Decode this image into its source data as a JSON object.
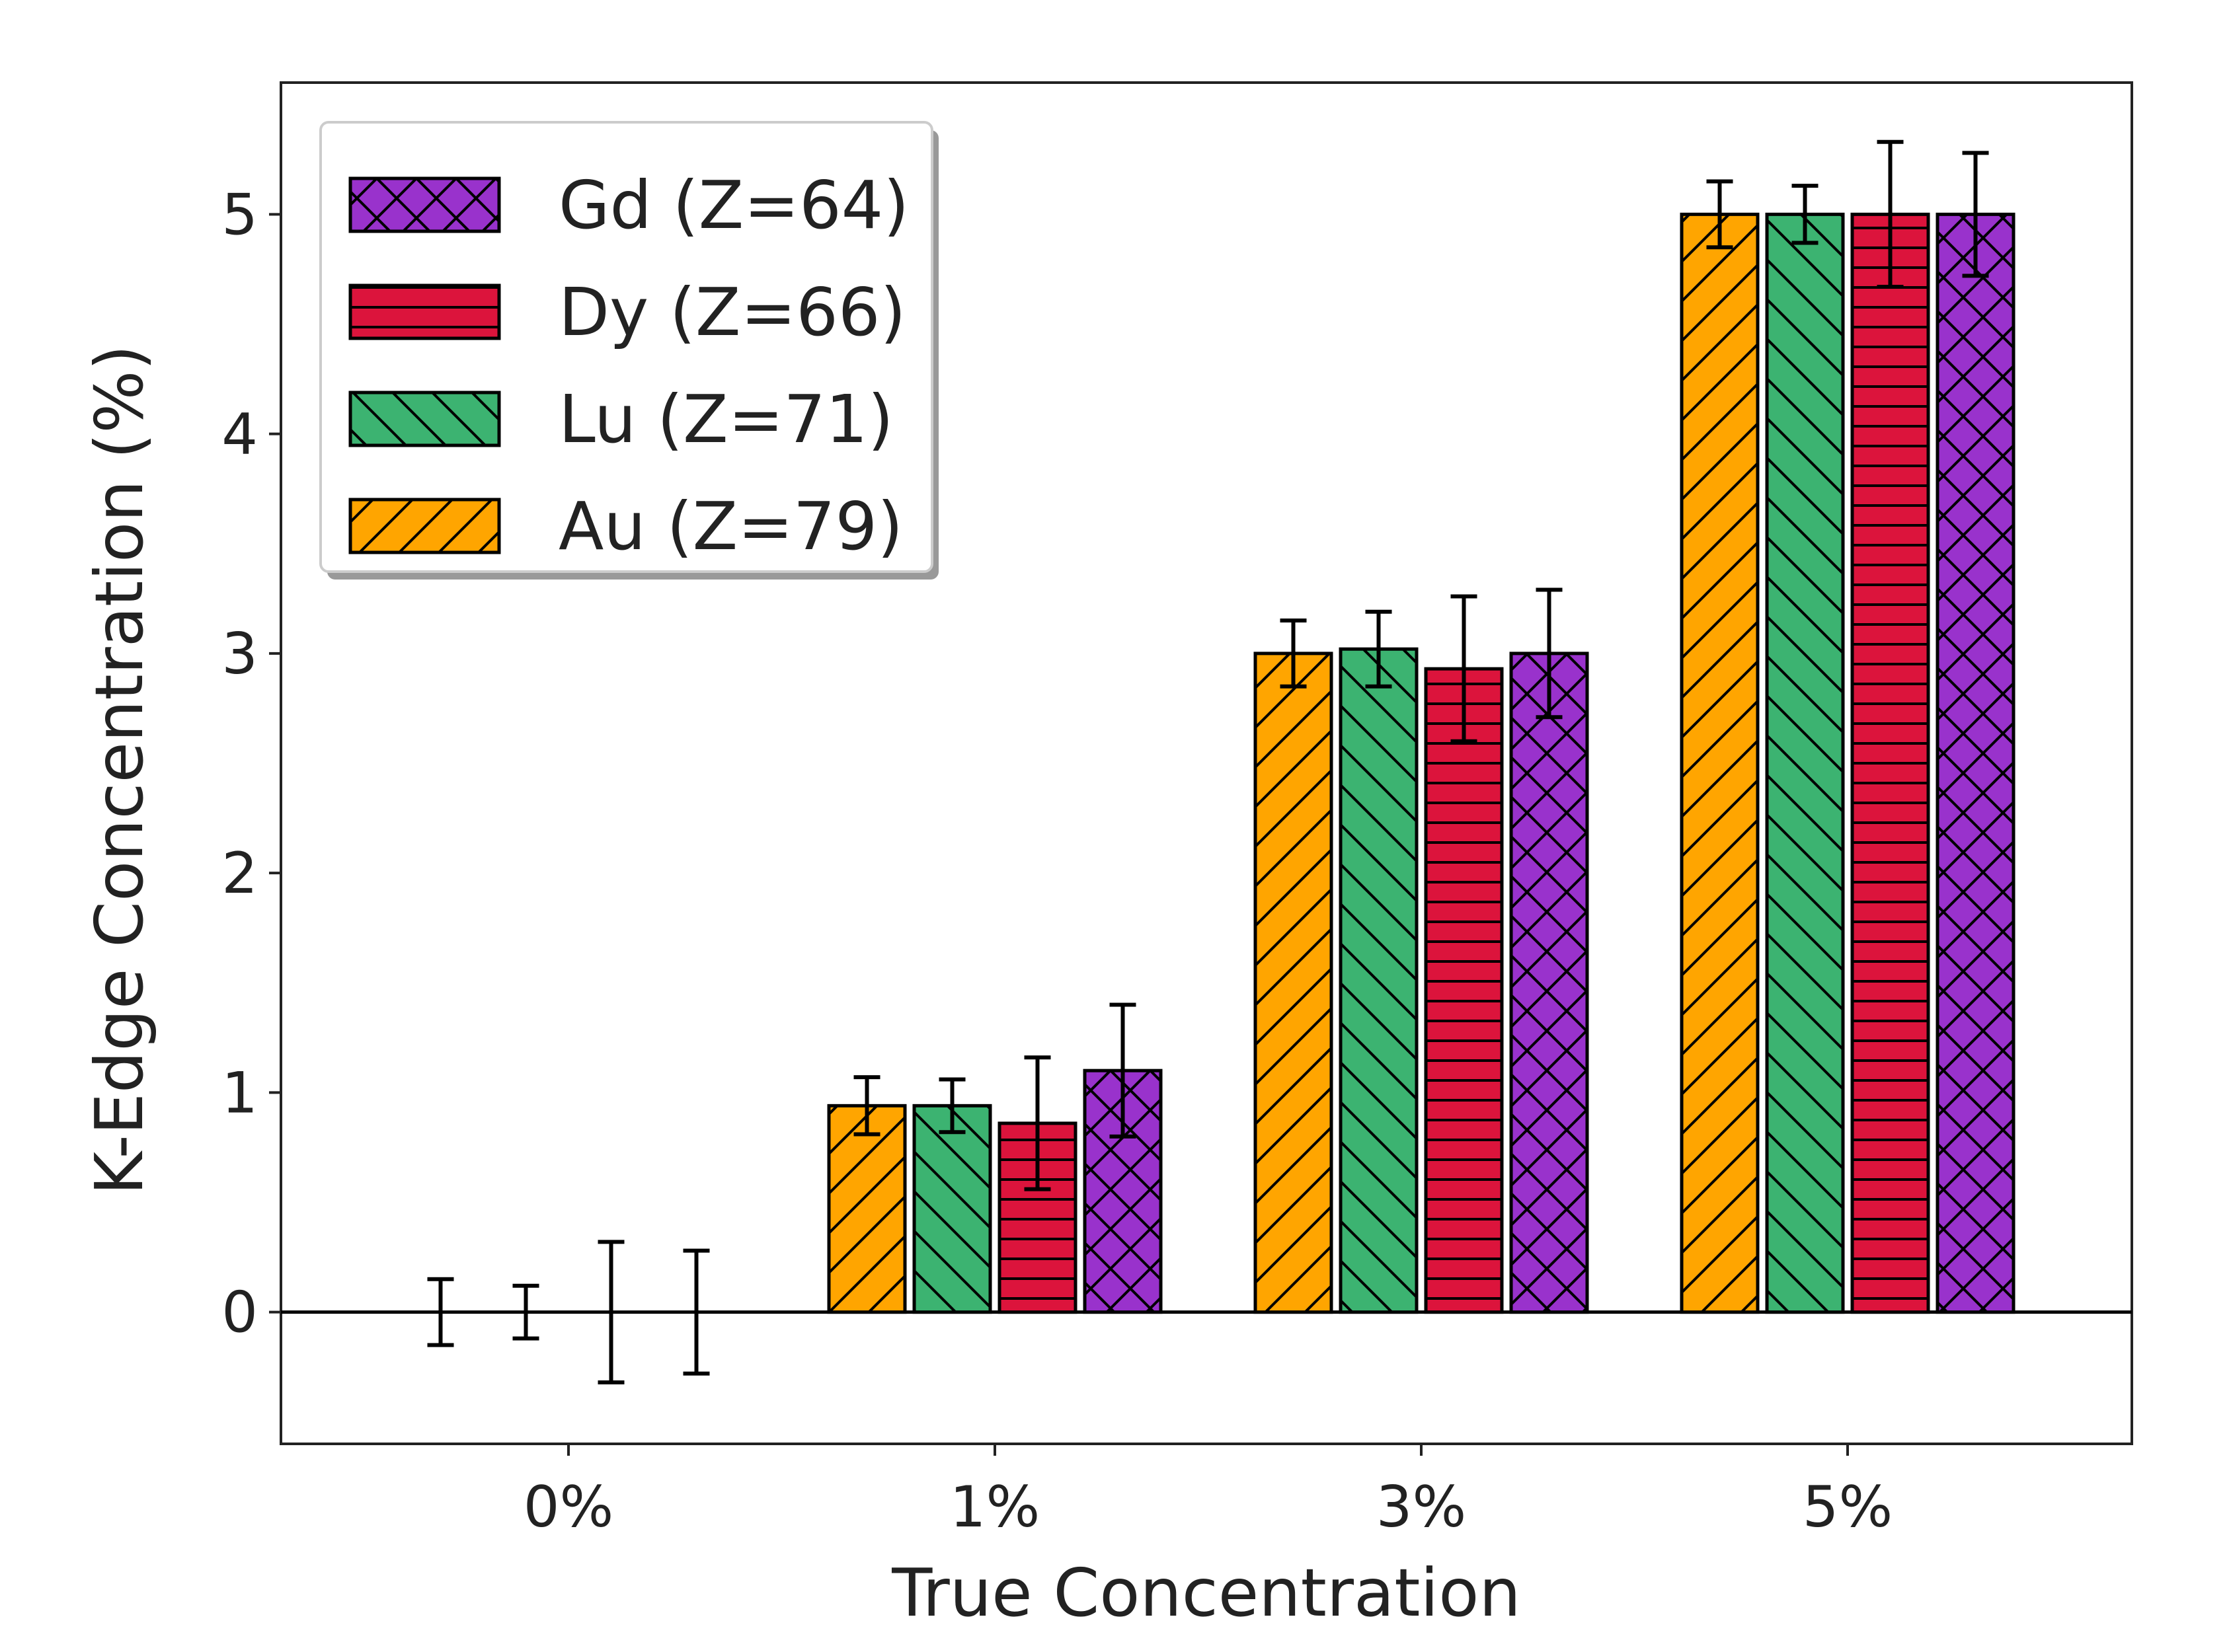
{
  "chart_data": {
    "type": "bar",
    "xlabel": "True Concentration",
    "ylabel": "K-Edge Concentration (%)",
    "ylim": [
      -0.6,
      5.6
    ],
    "yticks": [
      0,
      1,
      2,
      3,
      4,
      5
    ],
    "categories": [
      "0%",
      "1%",
      "3%",
      "5%"
    ],
    "legend_position": "upper-left",
    "zero_line": true,
    "series": [
      {
        "name": "Au (Z=79)",
        "color": "#FFA500",
        "hatch": "forward-diagonal",
        "values": [
          0.0,
          0.94,
          3.0,
          5.0
        ],
        "errors": [
          0.15,
          0.13,
          0.15,
          0.15
        ]
      },
      {
        "name": "Lu (Z=71)",
        "color": "#3CB371",
        "hatch": "back-diagonal",
        "values": [
          0.0,
          0.94,
          3.02,
          5.0
        ],
        "errors": [
          0.12,
          0.12,
          0.17,
          0.13
        ]
      },
      {
        "name": "Dy (Z=66)",
        "color": "#DC143C",
        "hatch": "horizontal",
        "values": [
          0.0,
          0.86,
          2.93,
          5.0
        ],
        "errors": [
          0.32,
          0.3,
          0.33,
          0.33
        ]
      },
      {
        "name": "Gd (Z=64)",
        "color": "#9932CC",
        "hatch": "crosshatch",
        "values": [
          0.0,
          1.1,
          3.0,
          5.0
        ],
        "errors": [
          0.28,
          0.3,
          0.29,
          0.28
        ]
      }
    ],
    "legend_order": [
      "Gd (Z=64)",
      "Dy (Z=66)",
      "Lu (Z=71)",
      "Au (Z=79)"
    ]
  }
}
